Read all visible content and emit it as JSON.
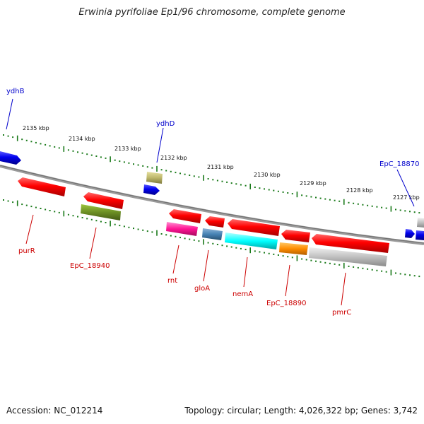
{
  "title": "Erwinia pyrifoliae Ep1/96 chromosome, complete genome",
  "footer": {
    "accession": "Accession: NC_012214",
    "summary": "Topology: circular; Length: 4,026,322 bp; Genes: 3,742"
  },
  "scale_ticks": [
    "2135 kbp",
    "2134 kbp",
    "2133 kbp",
    "2132 kbp",
    "2131 kbp",
    "2130 kbp",
    "2129 kbp",
    "2128 kbp",
    "2127 kbp"
  ],
  "genes": [
    {
      "name": "ydhB",
      "strand": "upper",
      "color": "#0000ee"
    },
    {
      "name": "ydhD",
      "strand": "upper",
      "color": "#0000ee"
    },
    {
      "name": "EpC_18870",
      "strand": "upper",
      "color": "#0000ee"
    },
    {
      "name": "purR",
      "strand": "lower",
      "color": "#cc0000"
    },
    {
      "name": "EpC_18940",
      "strand": "lower",
      "color": "#cc0000"
    },
    {
      "name": "rnt",
      "strand": "lower",
      "color": "#cc0000"
    },
    {
      "name": "gloA",
      "strand": "lower",
      "color": "#cc0000"
    },
    {
      "name": "nemA",
      "strand": "lower",
      "color": "#cc0000"
    },
    {
      "name": "EpC_18890",
      "strand": "lower",
      "color": "#cc0000"
    },
    {
      "name": "pmrC",
      "strand": "lower",
      "color": "#cc0000"
    }
  ],
  "colors": {
    "forward_label": "#0000cc",
    "reverse_label": "#cc0000",
    "tick": "#1a7a1a",
    "backbone": "#888888"
  }
}
